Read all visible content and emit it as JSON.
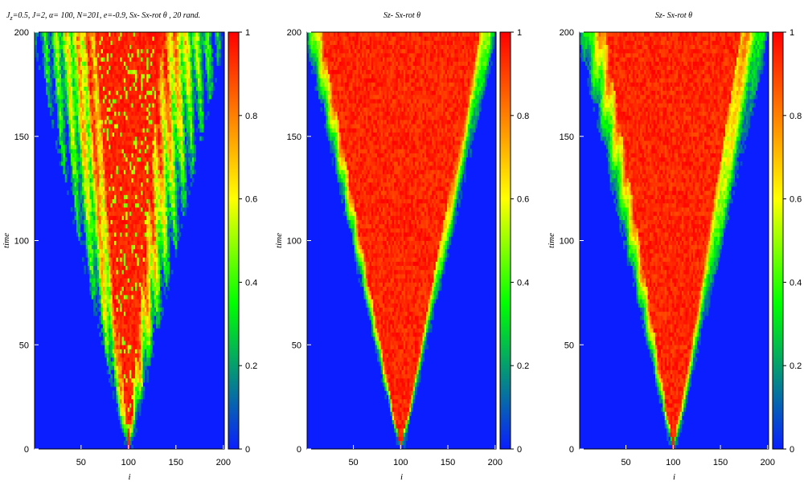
{
  "chart_data": [
    {
      "type": "heatmap",
      "title": "J_z=0.5,  J=2, α= 100,   N=201,  e=-0.9, Sx- Sx-rot θ , 20 rand.",
      "title_parts": {
        "j": "J",
        "j_sub": "z",
        "rest": "=0.5,  J=2, α= 100,   N=201,  e=-0.9, Sx- Sx-rot θ , 20 rand."
      },
      "xlabel": "i",
      "ylabel": "time",
      "xlim": [
        1,
        201
      ],
      "ylim": [
        0,
        200
      ],
      "xticks": [
        50,
        100,
        150,
        200
      ],
      "yticks": [
        0,
        50,
        100,
        150,
        200
      ],
      "colorbar": {
        "min": 0,
        "max": 1,
        "ticks": [
          0,
          0.2,
          0.4,
          0.6,
          0.8,
          1
        ],
        "colors": [
          "#0a1eff",
          "#00ff00",
          "#ffff00",
          "#ff0000"
        ]
      },
      "light_cone": {
        "center": 100,
        "front_speed": 0.5,
        "saturation_speed": 0.18,
        "texture": "fragmented"
      }
    },
    {
      "type": "heatmap",
      "title": "Sz- Sx-rot θ",
      "xlabel": "i",
      "ylabel": "time",
      "xlim": [
        1,
        201
      ],
      "ylim": [
        0,
        200
      ],
      "xticks": [
        50,
        100,
        150,
        200
      ],
      "yticks": [
        0,
        50,
        100,
        150,
        200
      ],
      "colorbar": {
        "min": 0,
        "max": 1,
        "ticks": [
          0,
          0.2,
          0.4,
          0.6,
          0.8,
          1
        ],
        "colors": [
          "#0a1eff",
          "#00ff00",
          "#ffff00",
          "#ff0000"
        ]
      },
      "light_cone": {
        "center": 100,
        "front_speed": 0.5,
        "saturation_speed": 0.42,
        "texture": "smooth"
      }
    },
    {
      "type": "heatmap",
      "title": "Sz- Sx-rot θ",
      "xlabel": "i",
      "ylabel": "time",
      "xlim": [
        1,
        201
      ],
      "ylim": [
        0,
        200
      ],
      "xticks": [
        50,
        100,
        150,
        200
      ],
      "yticks": [
        0,
        50,
        100,
        150,
        200
      ],
      "colorbar": {
        "min": 0,
        "max": 1,
        "ticks": [
          0,
          0.2,
          0.4,
          0.6,
          0.8,
          1
        ],
        "colors": [
          "#0a1eff",
          "#00ff00",
          "#ffff00",
          "#ff0000"
        ]
      },
      "light_cone": {
        "center": 100,
        "front_speed": 0.5,
        "saturation_speed": 0.36,
        "texture": "smooth"
      }
    }
  ]
}
